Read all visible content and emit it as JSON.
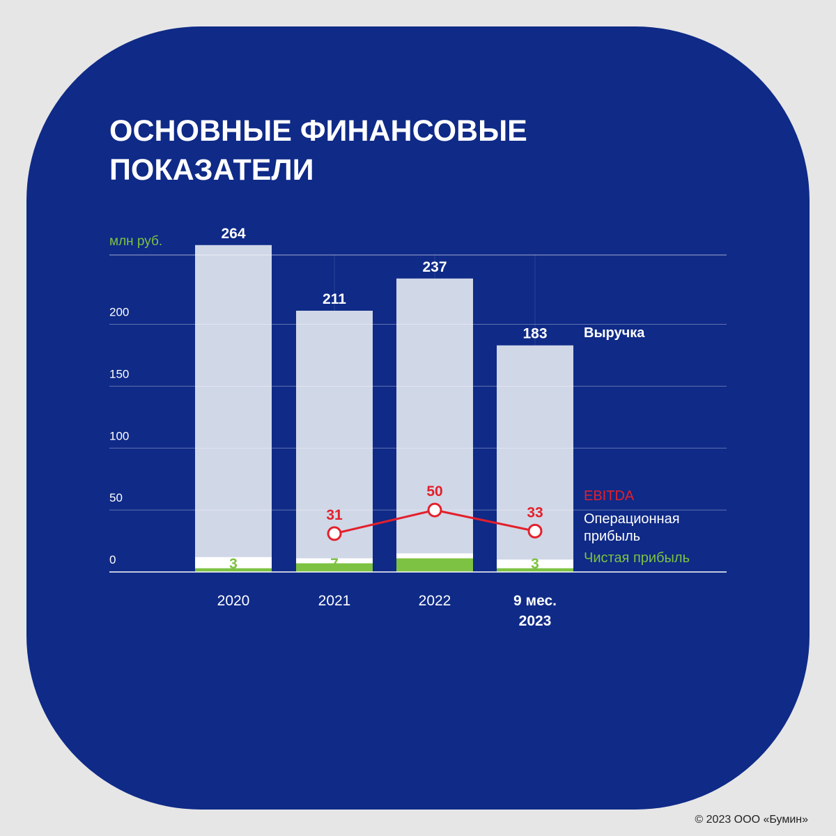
{
  "chart_data": {
    "type": "bar",
    "title": "ОСНОВНЫЕ ФИНАНСОВЫЕ ПОКАЗАТЕЛИ",
    "y_unit": "млн руб.",
    "categories": [
      "2020",
      "2021",
      "2022",
      "9 мес. 2023"
    ],
    "series": [
      {
        "name": "Выручка",
        "color": "#d0d7e7",
        "values": [
          264,
          211,
          237,
          183
        ]
      },
      {
        "name": "Операционная прибыль",
        "color": "#ffffff",
        "values": [
          12,
          11,
          15,
          10
        ]
      },
      {
        "name": "Чистая прибыль",
        "color": "#7dc242",
        "values": [
          3,
          7,
          11,
          3
        ]
      },
      {
        "name": "EBITDA",
        "type": "line",
        "color": "#e3202b",
        "values": [
          null,
          31,
          50,
          33
        ]
      }
    ],
    "ylim": [
      0,
      256
    ],
    "yticks": [
      0,
      50,
      100,
      150,
      200
    ],
    "grid": true
  },
  "footer": "© 2023 ООО «Бумин»"
}
